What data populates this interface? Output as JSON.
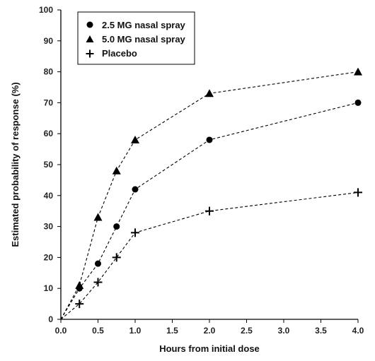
{
  "chart_data": {
    "type": "line",
    "xlabel": "Hours from initial dose",
    "ylabel": "Estimated probability of response (%)",
    "xlim": [
      0,
      4
    ],
    "ylim": [
      0,
      100
    ],
    "x_ticks": [
      "0.0",
      "0.5",
      "1.0",
      "1.5",
      "2.0",
      "2.5",
      "3.0",
      "3.5",
      "4.0"
    ],
    "y_ticks": [
      "0",
      "10",
      "20",
      "30",
      "40",
      "50",
      "60",
      "70",
      "80",
      "90",
      "100"
    ],
    "grid": false,
    "legend_position": "top-left",
    "line_style": "dashed",
    "color": "#000000",
    "series": [
      {
        "name": "2.5 MG nasal spray",
        "marker": "circle",
        "x": [
          0,
          0.25,
          0.5,
          0.75,
          1.0,
          2.0,
          4.0
        ],
        "y": [
          0,
          10,
          18,
          30,
          42,
          58,
          70
        ]
      },
      {
        "name": "5.0 MG nasal spray",
        "marker": "triangle",
        "x": [
          0,
          0.25,
          0.5,
          0.75,
          1.0,
          2.0,
          4.0
        ],
        "y": [
          0,
          11,
          33,
          48,
          58,
          73,
          80
        ]
      },
      {
        "name": "Placebo",
        "marker": "plus",
        "x": [
          0,
          0.25,
          0.5,
          0.75,
          1.0,
          2.0,
          4.0
        ],
        "y": [
          0,
          5,
          12,
          20,
          28,
          35,
          41
        ]
      }
    ]
  }
}
